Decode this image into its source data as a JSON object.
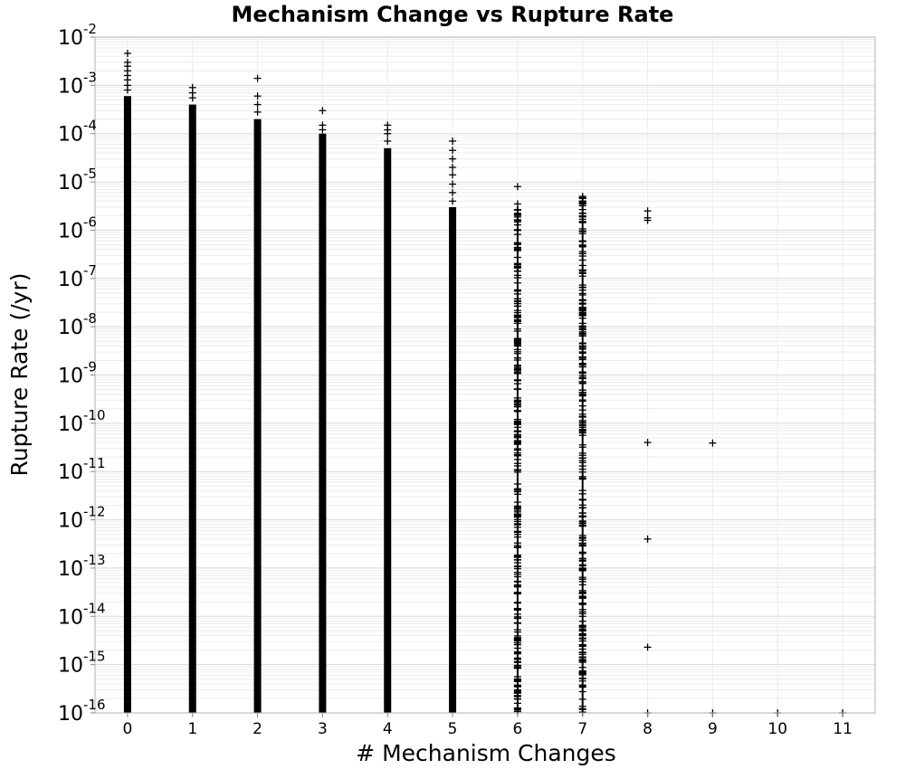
{
  "chart_data": {
    "type": "scatter",
    "title": "Mechanism Change vs Rupture Rate",
    "xlabel": "# Mechanism Changes",
    "ylabel": "Rupture Rate (/yr)",
    "x_ticks": [
      "0",
      "1",
      "2",
      "3",
      "4",
      "5",
      "6",
      "7",
      "8",
      "9",
      "10",
      "11"
    ],
    "y_scale": "log",
    "y_ticks": [
      {
        "base": "10",
        "exp": "-2"
      },
      {
        "base": "10",
        "exp": "-3"
      },
      {
        "base": "10",
        "exp": "-4"
      },
      {
        "base": "10",
        "exp": "-5"
      },
      {
        "base": "10",
        "exp": "-6"
      },
      {
        "base": "10",
        "exp": "-7"
      },
      {
        "base": "10",
        "exp": "-8"
      },
      {
        "base": "10",
        "exp": "-9"
      },
      {
        "base": "10",
        "exp": "-10"
      },
      {
        "base": "10",
        "exp": "-11"
      },
      {
        "base": "10",
        "exp": "-12"
      },
      {
        "base": "10",
        "exp": "-13"
      },
      {
        "base": "10",
        "exp": "-14"
      },
      {
        "base": "10",
        "exp": "-15"
      },
      {
        "base": "10",
        "exp": "-16"
      }
    ],
    "xlim": [
      -0.5,
      11.5
    ],
    "ylim": [
      1e-16,
      0.01
    ],
    "grid": true,
    "marker": "+",
    "marker_color": "#000000",
    "series": [
      {
        "x": 0,
        "dense_range": [
          1e-16,
          0.0006
        ],
        "points": [
          0.0046,
          0.003,
          0.0025,
          0.002,
          0.0016,
          0.0013,
          0.001,
          0.0008
        ]
      },
      {
        "x": 1,
        "dense_range": [
          1e-16,
          0.0004
        ],
        "points": [
          0.0009,
          0.0007,
          0.00055
        ]
      },
      {
        "x": 2,
        "dense_range": [
          1e-16,
          0.0002
        ],
        "points": [
          0.0014,
          0.0006,
          0.0004,
          0.00028
        ]
      },
      {
        "x": 3,
        "dense_range": [
          1e-16,
          0.0001
        ],
        "points": [
          0.0003,
          0.00015,
          0.00012
        ]
      },
      {
        "x": 4,
        "dense_range": [
          1e-16,
          5e-05
        ],
        "points": [
          0.00015,
          0.00012,
          0.0001,
          7e-05
        ]
      },
      {
        "x": 5,
        "dense_range": [
          1e-16,
          3e-06
        ],
        "points": [
          7e-05,
          4.5e-05,
          3e-05,
          2e-05,
          1.4e-05,
          9e-06,
          6e-06,
          4e-06
        ]
      },
      {
        "x": 6,
        "dense_range": [
          1e-16,
          3e-06
        ],
        "sparse": true,
        "points": [
          8e-06,
          3.5e-06
        ]
      },
      {
        "x": 7,
        "dense_range": [
          1e-16,
          5e-06
        ],
        "sparse": true,
        "points": [
          5e-06,
          4e-06,
          2e-08,
          1.5e-08,
          4e-09,
          3e-09
        ]
      },
      {
        "x": 8,
        "points": [
          2.5e-06,
          1.8e-06,
          1.6e-06,
          4e-11,
          4e-13,
          2.3e-15,
          1e-16
        ]
      },
      {
        "x": 9,
        "points": [
          3.9e-11,
          1e-16
        ]
      },
      {
        "x": 10,
        "points": [
          1e-16
        ]
      },
      {
        "x": 11,
        "points": [
          1e-16
        ]
      }
    ]
  }
}
